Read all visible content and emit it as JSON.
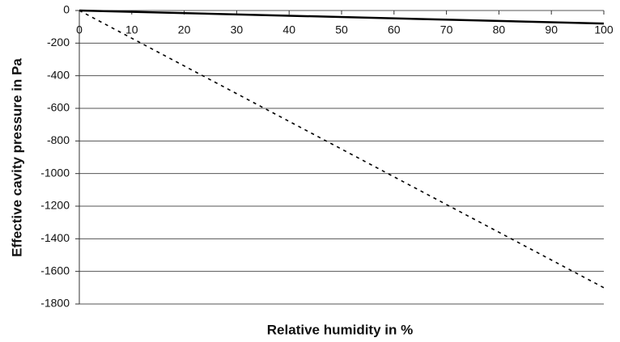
{
  "chart_data": {
    "type": "line",
    "xlabel": "Relative humidity in %",
    "ylabel": "Effective cavity pressure in Pa",
    "x": [
      0,
      100
    ],
    "series": [
      {
        "color": "#000000",
        "line_style": "solid",
        "values": [
          0,
          -80
        ]
      },
      {
        "color": "#000000",
        "line_style": "dashed",
        "values": [
          0,
          -1700
        ]
      }
    ],
    "xlim": [
      0,
      100
    ],
    "xticks": [
      0,
      10,
      20,
      30,
      40,
      50,
      60,
      70,
      80,
      90,
      100
    ],
    "ylim": [
      -1800,
      0
    ],
    "yticks": [
      0,
      -200,
      -400,
      -600,
      -800,
      -1000,
      -1200,
      -1400,
      -1600,
      -1800
    ],
    "grid": true
  }
}
